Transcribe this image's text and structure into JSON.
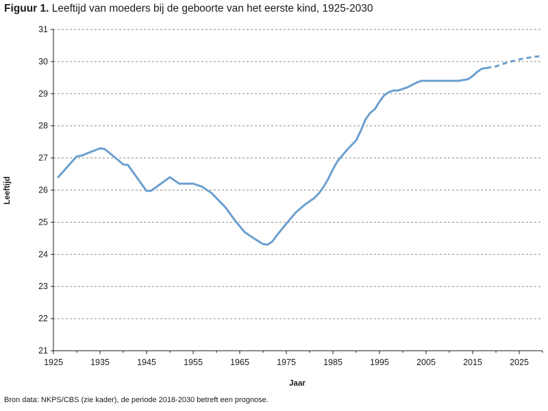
{
  "header": {
    "figure_label": "Figuur 1.",
    "title": "Leeftijd van moeders bij de geboorte van het eerste kind, 1925-2030"
  },
  "footer": {
    "source": "Bron data: NKPS/CBS (zie kader), de periode 2018-2030 betreft een prognose."
  },
  "chart_data": {
    "type": "line",
    "title": "Leeftijd van moeders bij de geboorte van het eerste kind, 1925-2030",
    "xlabel": "Jaar",
    "ylabel": "Leeftijd",
    "xlim": [
      1925,
      2030
    ],
    "ylim": [
      21,
      31
    ],
    "x_ticks": [
      1925,
      1935,
      1945,
      1955,
      1965,
      1975,
      1985,
      1995,
      2005,
      2015,
      2025
    ],
    "y_ticks": [
      21,
      22,
      23,
      24,
      25,
      26,
      27,
      28,
      29,
      30,
      31
    ],
    "grid": "horizontal dashed",
    "color": "#6b9fcf",
    "series": [
      {
        "style": "solid",
        "x": [
          1926,
          1930,
          1931,
          1935,
          1936,
          1940,
          1941,
          1945,
          1946,
          1950,
          1952,
          1955,
          1957,
          1959,
          1960,
          1962,
          1964,
          1966,
          1968,
          1970,
          1971,
          1972,
          1973,
          1975,
          1977,
          1979,
          1981,
          1982,
          1983,
          1984,
          1985,
          1986,
          1988,
          1990,
          1991,
          1992,
          1993,
          1994,
          1995,
          1996,
          1997,
          1998,
          1999,
          2000,
          2001,
          2003,
          2004,
          2005,
          2007,
          2010,
          2012,
          2014,
          2015,
          2016,
          2017,
          2018
        ],
        "y": [
          26.4,
          27.05,
          27.07,
          27.3,
          27.28,
          26.8,
          26.78,
          25.97,
          25.98,
          26.4,
          26.2,
          26.2,
          26.1,
          25.9,
          25.75,
          25.45,
          25.05,
          24.7,
          24.5,
          24.32,
          24.3,
          24.4,
          24.6,
          24.95,
          25.3,
          25.55,
          25.75,
          25.9,
          26.1,
          26.35,
          26.65,
          26.9,
          27.25,
          27.55,
          27.85,
          28.2,
          28.4,
          28.52,
          28.75,
          28.95,
          29.05,
          29.1,
          29.1,
          29.15,
          29.2,
          29.35,
          29.4,
          29.4,
          29.4,
          29.4,
          29.4,
          29.45,
          29.55,
          29.68,
          29.78,
          29.8
        ]
      },
      {
        "style": "dashed",
        "x": [
          2018,
          2020,
          2022,
          2024,
          2026,
          2028,
          2030
        ],
        "y": [
          29.8,
          29.85,
          29.95,
          30.03,
          30.1,
          30.14,
          30.18
        ]
      }
    ]
  }
}
